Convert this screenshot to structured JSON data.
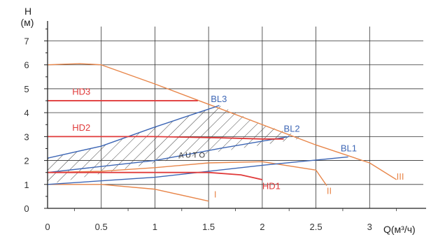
{
  "chart_data": {
    "type": "line",
    "xlabel": "Q(м³/ч)",
    "ylabel_top": "H",
    "ylabel_unit": "(м)",
    "xlim": [
      0,
      3.5
    ],
    "ylim": [
      0,
      7.6
    ],
    "x_ticks": [
      0,
      0.5,
      1,
      1.5,
      2,
      2.5,
      3
    ],
    "x_tick_labels": [
      "0",
      "0.5",
      "1",
      "1.5",
      "2",
      "2.5",
      "3"
    ],
    "y_ticks": [
      0,
      1,
      2,
      3,
      4,
      5,
      6,
      7
    ],
    "y_tick_labels": [
      "0",
      "1",
      "2",
      "3",
      "4",
      "5",
      "6",
      "7"
    ],
    "grid": true,
    "colors": {
      "orange": "#e8864a",
      "red": "#e03a3a",
      "blue": "#3d66b5",
      "hatch": "#444444",
      "grid": "#333333"
    },
    "series": [
      {
        "name": "I",
        "color": "orange",
        "points": [
          [
            0,
            1.0
          ],
          [
            0.5,
            1.0
          ],
          [
            1.0,
            0.8
          ],
          [
            1.5,
            0.3
          ]
        ]
      },
      {
        "name": "II",
        "color": "orange",
        "points": [
          [
            0,
            1.5
          ],
          [
            0.5,
            1.55
          ],
          [
            1.0,
            1.7
          ],
          [
            1.5,
            1.9
          ],
          [
            2.0,
            1.95
          ],
          [
            2.5,
            1.6
          ],
          [
            2.6,
            0.95
          ]
        ]
      },
      {
        "name": "III",
        "color": "orange",
        "points": [
          [
            0,
            6.0
          ],
          [
            0.3,
            6.05
          ],
          [
            0.5,
            6.0
          ],
          [
            1.0,
            5.2
          ],
          [
            1.5,
            4.35
          ],
          [
            2.0,
            3.5
          ],
          [
            2.5,
            2.65
          ],
          [
            3.0,
            1.9
          ],
          [
            3.25,
            1.2
          ]
        ]
      },
      {
        "name": "HD1",
        "color": "red",
        "points": [
          [
            0,
            1.5
          ],
          [
            1.5,
            1.5
          ],
          [
            1.8,
            1.4
          ],
          [
            2.0,
            1.2
          ]
        ]
      },
      {
        "name": "HD2",
        "color": "red",
        "points": [
          [
            0,
            3.0
          ],
          [
            1.0,
            3.0
          ],
          [
            1.6,
            2.95
          ],
          [
            2.0,
            2.9
          ],
          [
            2.2,
            2.9
          ]
        ]
      },
      {
        "name": "HD3",
        "color": "red",
        "points": [
          [
            0,
            4.5
          ],
          [
            1.4,
            4.5
          ]
        ]
      },
      {
        "name": "BL1",
        "color": "blue",
        "points": [
          [
            0,
            1.0
          ],
          [
            1.0,
            1.3
          ],
          [
            2.0,
            1.8
          ],
          [
            2.8,
            2.15
          ]
        ]
      },
      {
        "name": "BL2",
        "color": "blue",
        "points": [
          [
            0,
            1.5
          ],
          [
            1.0,
            2.0
          ],
          [
            1.6,
            2.5
          ],
          [
            2.25,
            3.0
          ]
        ]
      },
      {
        "name": "BL3",
        "color": "blue",
        "points": [
          [
            0,
            2.1
          ],
          [
            0.5,
            2.6
          ],
          [
            1.0,
            3.4
          ],
          [
            1.5,
            4.15
          ],
          [
            1.6,
            4.3
          ]
        ]
      }
    ],
    "region": {
      "name": "AUTO",
      "boundary": [
        [
          0,
          1.0
        ],
        [
          0.5,
          1.45
        ],
        [
          1.0,
          1.9
        ],
        [
          1.5,
          2.3
        ],
        [
          2.0,
          2.65
        ],
        [
          2.4,
          2.95
        ],
        [
          2.0,
          3.5
        ],
        [
          1.6,
          4.3
        ],
        [
          1.0,
          3.4
        ],
        [
          0.5,
          2.6
        ],
        [
          0,
          2.1
        ]
      ]
    },
    "labels": [
      {
        "text": "HD3",
        "x": 0.23,
        "y": 4.75,
        "color": "red"
      },
      {
        "text": "HD2",
        "x": 0.23,
        "y": 3.25,
        "color": "red"
      },
      {
        "text": "HD1",
        "x": 2.0,
        "y": 0.8,
        "color": "red"
      },
      {
        "text": "BL3",
        "x": 1.52,
        "y": 4.45,
        "color": "blue"
      },
      {
        "text": "BL2",
        "x": 2.2,
        "y": 3.2,
        "color": "blue"
      },
      {
        "text": "BL1",
        "x": 2.73,
        "y": 2.38,
        "color": "blue"
      },
      {
        "text": "AUTO",
        "x": 1.22,
        "y": 2.12,
        "color": "dark"
      },
      {
        "text": "I",
        "x": 1.55,
        "y": 0.45,
        "color": "orange"
      },
      {
        "text": "II",
        "x": 2.6,
        "y": 0.6,
        "color": "orange"
      },
      {
        "text": "III",
        "x": 3.25,
        "y": 1.2,
        "color": "orange"
      }
    ]
  }
}
